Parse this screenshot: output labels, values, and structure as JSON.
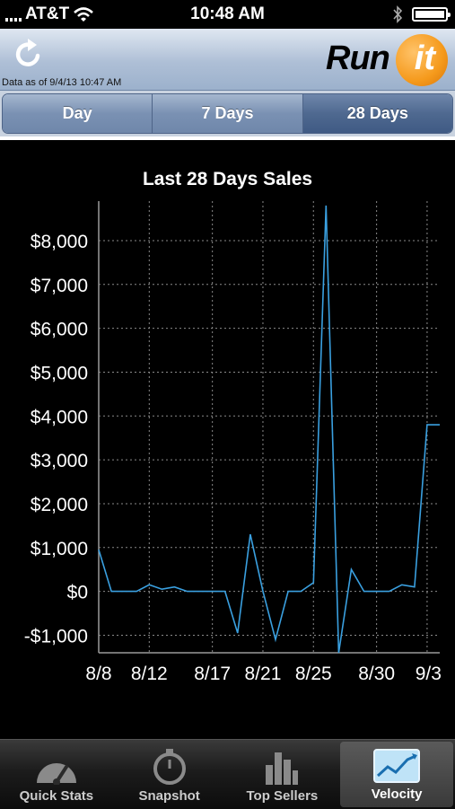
{
  "status_bar": {
    "carrier": "AT&T",
    "time": "10:48 AM"
  },
  "header": {
    "data_as_of": "Data as of 9/4/13 10:47 AM",
    "logo_text_left": "Run",
    "logo_text_right": "it"
  },
  "segments": [
    {
      "label": "Day",
      "active": false
    },
    {
      "label": "7 Days",
      "active": false
    },
    {
      "label": "28 Days",
      "active": true
    }
  ],
  "chart_data": {
    "type": "line",
    "title": "Last 28 Days Sales",
    "x_tick_labels": [
      "8/8",
      "8/12",
      "8/17",
      "8/21",
      "8/25",
      "8/30",
      "9/3"
    ],
    "x_tick_index": [
      0,
      4,
      9,
      13,
      17,
      22,
      26
    ],
    "y_tick_labels": [
      "-$1,000",
      "$0",
      "$1,000",
      "$2,000",
      "$3,000",
      "$4,000",
      "$5,000",
      "$6,000",
      "$7,000",
      "$8,000"
    ],
    "y_tick_values": [
      -1000,
      0,
      1000,
      2000,
      3000,
      4000,
      5000,
      6000,
      7000,
      8000
    ],
    "ylim": [
      -1400,
      8900
    ],
    "grid": true,
    "line_color": "#3aa0e0",
    "dates": [
      "8/8",
      "8/9",
      "8/10",
      "8/11",
      "8/12",
      "8/13",
      "8/14",
      "8/15",
      "8/16",
      "8/17",
      "8/18",
      "8/19",
      "8/20",
      "8/21",
      "8/22",
      "8/23",
      "8/24",
      "8/25",
      "8/26",
      "8/27",
      "8/28",
      "8/29",
      "8/30",
      "8/31",
      "9/1",
      "9/2",
      "9/3",
      "9/4"
    ],
    "values": [
      950,
      0,
      0,
      0,
      150,
      50,
      100,
      0,
      0,
      0,
      0,
      -950,
      1300,
      0,
      -1100,
      0,
      0,
      200,
      8800,
      -1400,
      500,
      0,
      0,
      0,
      150,
      100,
      3800,
      3800
    ]
  },
  "tabs": [
    {
      "label": "Quick Stats",
      "icon": "speedometer-icon",
      "active": false
    },
    {
      "label": "Snapshot",
      "icon": "stopwatch-icon",
      "active": false
    },
    {
      "label": "Top Sellers",
      "icon": "bar-chart-icon",
      "active": false
    },
    {
      "label": "Velocity",
      "icon": "line-chart-icon",
      "active": true
    }
  ]
}
